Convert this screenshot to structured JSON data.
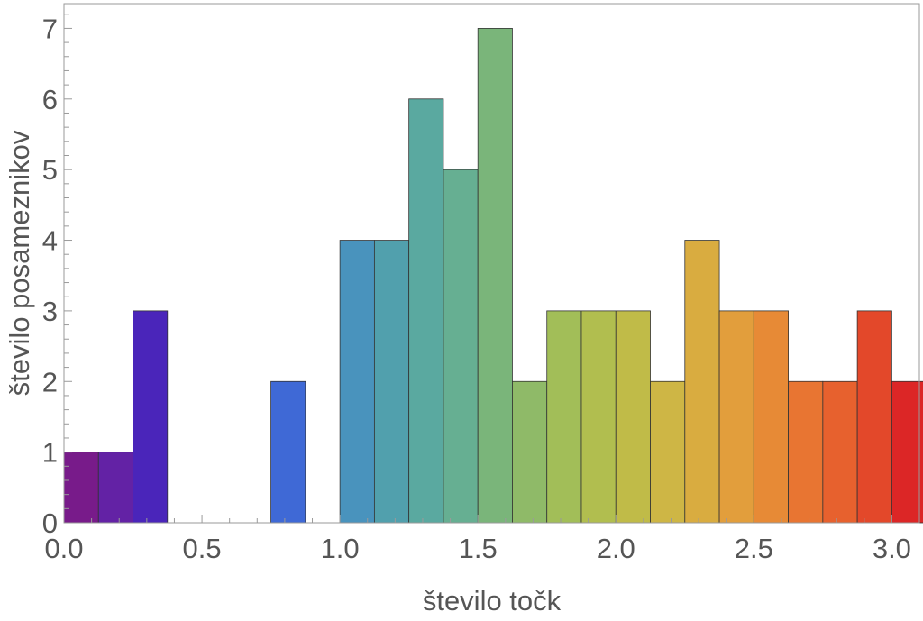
{
  "chart_data": {
    "type": "bar",
    "xlabel": "število točk",
    "ylabel": "število posameznikov",
    "xlim": [
      0.0,
      3.1
    ],
    "ylim": [
      0,
      7.35
    ],
    "bin_width": 0.125,
    "x_ticks": [
      "0.0",
      "0.5",
      "1.0",
      "1.5",
      "2.0",
      "2.5",
      "3.0"
    ],
    "x_tick_values": [
      0.0,
      0.5,
      1.0,
      1.5,
      2.0,
      2.5,
      3.0
    ],
    "y_ticks": [
      "0",
      "1",
      "2",
      "3",
      "4",
      "5",
      "6",
      "7"
    ],
    "y_tick_values": [
      0,
      1,
      2,
      3,
      4,
      5,
      6,
      7
    ],
    "grid": false,
    "bins": [
      {
        "start": 0.0625,
        "value": 1,
        "color": "#781b8a"
      },
      {
        "start": 0.1875,
        "value": 1,
        "color": "#6322a5"
      },
      {
        "start": 0.3125,
        "value": 3,
        "color": "#4a25ba"
      },
      {
        "start": 0.4375,
        "value": 0,
        "color": "#4431c8"
      },
      {
        "start": 0.5625,
        "value": 0,
        "color": "#413fcd"
      },
      {
        "start": 0.6875,
        "value": 0,
        "color": "#3f55d3"
      },
      {
        "start": 0.8125,
        "value": 2,
        "color": "#3f69d6"
      },
      {
        "start": 0.9375,
        "value": 0,
        "color": "#4580c8"
      },
      {
        "start": 1.0625,
        "value": 4,
        "color": "#4993bd"
      },
      {
        "start": 1.1875,
        "value": 4,
        "color": "#51a0ad"
      },
      {
        "start": 1.3125,
        "value": 6,
        "color": "#5aa9a0"
      },
      {
        "start": 1.4375,
        "value": 5,
        "color": "#66af92"
      },
      {
        "start": 1.5625,
        "value": 7,
        "color": "#7ab57a"
      },
      {
        "start": 1.6875,
        "value": 2,
        "color": "#8fba68"
      },
      {
        "start": 1.8125,
        "value": 3,
        "color": "#a2be58"
      },
      {
        "start": 1.9375,
        "value": 3,
        "color": "#b1be4f"
      },
      {
        "start": 2.0625,
        "value": 3,
        "color": "#c0bb48"
      },
      {
        "start": 2.1875,
        "value": 2,
        "color": "#ceb645"
      },
      {
        "start": 2.3125,
        "value": 4,
        "color": "#d9ac40"
      },
      {
        "start": 2.4375,
        "value": 3,
        "color": "#e29e3c"
      },
      {
        "start": 2.5625,
        "value": 3,
        "color": "#e78a36"
      },
      {
        "start": 2.6875,
        "value": 2,
        "color": "#e87532"
      },
      {
        "start": 2.8125,
        "value": 2,
        "color": "#e7612e"
      },
      {
        "start": 2.9375,
        "value": 3,
        "color": "#e3482a"
      },
      {
        "start": 3.0625,
        "value": 2,
        "color": "#dc2626"
      }
    ]
  }
}
